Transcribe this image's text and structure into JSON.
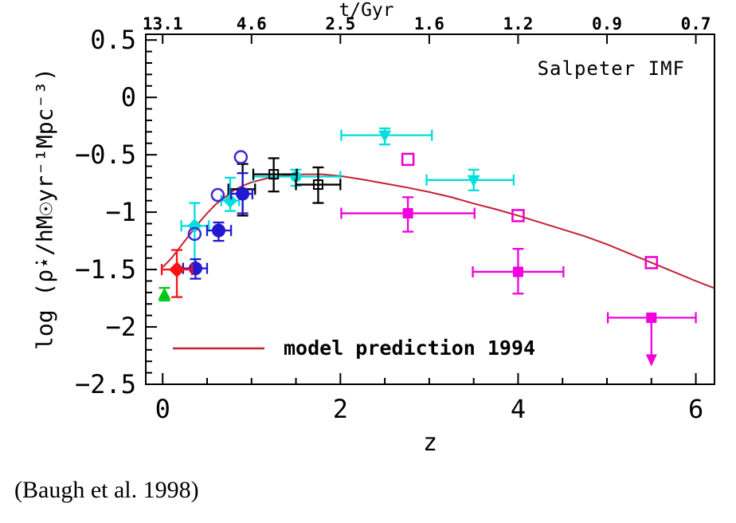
{
  "caption": "(Baugh et al. 1998)",
  "chart_data": {
    "type": "scatter",
    "annotation": "Salpeter IMF",
    "legend": {
      "label": "model prediction 1994"
    },
    "top_axis": {
      "title": "t/Gyr",
      "ticks": [
        {
          "z": 0,
          "label": "13.1"
        },
        {
          "z": 1,
          "label": "4.6"
        },
        {
          "z": 2,
          "label": "2.5"
        },
        {
          "z": 3,
          "label": "1.6"
        },
        {
          "z": 4,
          "label": "1.2"
        },
        {
          "z": 5,
          "label": "0.9"
        },
        {
          "z": 6,
          "label": "0.7"
        }
      ]
    },
    "x_axis": {
      "title": "z",
      "range": [
        -0.19,
        6.21
      ],
      "minor_step": 0.5,
      "major_ticks": [
        {
          "z": 0,
          "label": "0"
        },
        {
          "z": 2,
          "label": "2"
        },
        {
          "z": 4,
          "label": "4"
        },
        {
          "z": 6,
          "label": "6"
        }
      ]
    },
    "y_axis": {
      "title": "log (ρ̇⋆/hM☉yr⁻¹Mpc⁻³)",
      "range": [
        -2.5,
        0.55
      ],
      "minor_step": 0.1,
      "major_ticks": [
        {
          "v": 0.5,
          "label": "0.5"
        },
        {
          "v": 0,
          "label": "0"
        },
        {
          "v": -0.5,
          "label": "−0.5"
        },
        {
          "v": -1,
          "label": "−1"
        },
        {
          "v": -1.5,
          "label": "−1.5"
        },
        {
          "v": -2,
          "label": "−2"
        },
        {
          "v": -2.5,
          "label": "−2.5"
        }
      ]
    },
    "model_curve": {
      "name": "model prediction 1994",
      "color": "#c42131",
      "points": [
        [
          0.0,
          -1.48
        ],
        [
          0.1,
          -1.4
        ],
        [
          0.2,
          -1.3
        ],
        [
          0.3,
          -1.2
        ],
        [
          0.4,
          -1.1
        ],
        [
          0.5,
          -1.01
        ],
        [
          0.6,
          -0.93
        ],
        [
          0.7,
          -0.87
        ],
        [
          0.8,
          -0.81
        ],
        [
          0.9,
          -0.77
        ],
        [
          1.0,
          -0.74
        ],
        [
          1.2,
          -0.7
        ],
        [
          1.4,
          -0.68
        ],
        [
          1.6,
          -0.67
        ],
        [
          1.8,
          -0.67
        ],
        [
          2.0,
          -0.685
        ],
        [
          2.25,
          -0.715
        ],
        [
          2.5,
          -0.75
        ],
        [
          2.75,
          -0.785
        ],
        [
          3.0,
          -0.825
        ],
        [
          3.25,
          -0.87
        ],
        [
          3.5,
          -0.925
        ],
        [
          3.75,
          -0.975
        ],
        [
          4.0,
          -1.03
        ],
        [
          4.25,
          -1.09
        ],
        [
          4.5,
          -1.15
        ],
        [
          4.75,
          -1.21
        ],
        [
          5.0,
          -1.28
        ],
        [
          5.25,
          -1.36
        ],
        [
          5.5,
          -1.44
        ],
        [
          5.75,
          -1.52
        ],
        [
          6.0,
          -1.6
        ],
        [
          6.2,
          -1.66
        ]
      ]
    },
    "series": [
      {
        "name": "black-errorbar",
        "color": "#000000",
        "marker": "none",
        "size": 0,
        "points": [
          {
            "x": 0.9,
            "y": -0.8,
            "xlo": 0.74,
            "xhi": 1.04,
            "ylo": -1.03,
            "yhi": -0.58
          }
        ]
      },
      {
        "name": "cyan-diamonds",
        "color": "#00dede",
        "marker": "diamond",
        "size": 8,
        "points": [
          {
            "x": 0.36,
            "y": -1.12,
            "xlo": 0.21,
            "xhi": 0.52,
            "ylo": -1.5,
            "yhi": -0.92
          },
          {
            "x": 0.76,
            "y": -0.9,
            "xlo": 0.66,
            "xhi": 0.86,
            "ylo": -0.99,
            "yhi": -0.7
          }
        ]
      },
      {
        "name": "cyan-circle",
        "color": "#00dede",
        "marker": "circle",
        "size": 7,
        "points": [
          {
            "x": 1.5,
            "y": -0.69,
            "xlo": 1.02,
            "xhi": 2.0,
            "ylo": -0.77,
            "yhi": -0.63
          }
        ]
      },
      {
        "name": "cyan-triangles-down",
        "color": "#00dede",
        "marker": "triangle-down",
        "size": 8,
        "points": [
          {
            "x": 2.5,
            "y": -0.33,
            "xlo": 2.01,
            "xhi": 3.03,
            "ylo": -0.41,
            "yhi": -0.27
          },
          {
            "x": 3.5,
            "y": -0.72,
            "xlo": 2.97,
            "xhi": 3.95,
            "ylo": -0.81,
            "yhi": -0.63
          }
        ]
      },
      {
        "name": "black-squares-cross",
        "color": "#000000",
        "marker": "square-plus",
        "size": 5.5,
        "points": [
          {
            "x": 1.25,
            "y": -0.67,
            "xlo": 1.02,
            "xhi": 1.51,
            "ylo": -0.82,
            "yhi": -0.53
          },
          {
            "x": 1.75,
            "y": -0.76,
            "xlo": 1.5,
            "xhi": 2.0,
            "ylo": -0.92,
            "yhi": -0.61
          }
        ]
      },
      {
        "name": "magenta-filled-squares",
        "color": "#f000dd",
        "marker": "square",
        "size": 6.5,
        "points": [
          {
            "x": 2.76,
            "y": -1.01,
            "xlo": 2.01,
            "xhi": 3.51,
            "ylo": -1.17,
            "yhi": -0.87
          },
          {
            "x": 4.0,
            "y": -1.52,
            "xlo": 3.49,
            "xhi": 4.51,
            "ylo": -1.71,
            "yhi": -1.32
          },
          {
            "x": 5.5,
            "y": -1.92,
            "xlo": 5.01,
            "xhi": 6.0,
            "limit": true
          }
        ]
      },
      {
        "name": "magenta-open-squares",
        "color": "#ee00cc",
        "marker": "square-open",
        "size": 7,
        "points": [
          {
            "x": 2.76,
            "y": -0.54
          },
          {
            "x": 4.0,
            "y": -1.03
          },
          {
            "x": 5.5,
            "y": -1.44
          }
        ]
      },
      {
        "name": "blue-open-circles",
        "color": "#4028d8",
        "marker": "circle-open",
        "size": 7.5,
        "points": [
          {
            "x": 0.36,
            "y": -1.19
          },
          {
            "x": 0.62,
            "y": -0.85
          },
          {
            "x": 0.88,
            "y": -0.52
          }
        ]
      },
      {
        "name": "blue-filled-circles",
        "color": "#2318d2",
        "marker": "circle",
        "size": 8.5,
        "points": [
          {
            "x": 0.37,
            "y": -1.49,
            "xlo": 0.23,
            "xhi": 0.5,
            "ylo": -1.58,
            "yhi": -1.41
          },
          {
            "x": 0.63,
            "y": -1.16,
            "xlo": 0.5,
            "xhi": 0.77,
            "ylo": -1.25,
            "yhi": -1.09
          },
          {
            "x": 0.9,
            "y": -0.84,
            "xlo": 0.77,
            "xhi": 1.01,
            "ylo": -1.01,
            "yhi": -0.66
          }
        ]
      },
      {
        "name": "red-diamond",
        "color": "#ff1111",
        "marker": "diamond",
        "size": 9,
        "points": [
          {
            "x": 0.16,
            "y": -1.5,
            "xlo": -0.01,
            "xhi": 0.33,
            "ylo": -1.74,
            "yhi": -1.33
          }
        ]
      },
      {
        "name": "green-triangle",
        "color": "#00c814",
        "marker": "triangle-up",
        "size": 8,
        "points": [
          {
            "x": 0.02,
            "y": -1.72,
            "ylo": -1.77,
            "yhi": -1.66
          }
        ]
      }
    ]
  }
}
